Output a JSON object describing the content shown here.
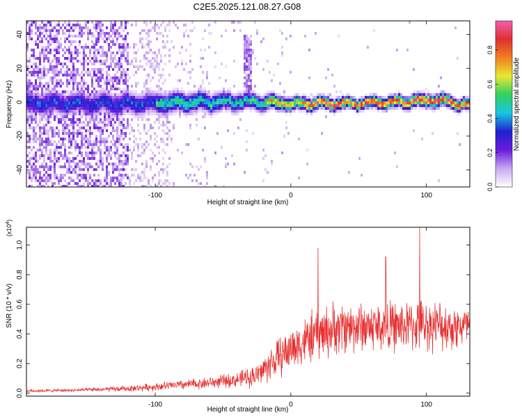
{
  "title": "C2E5.2025.121.08.27.G08",
  "chart_data": [
    {
      "type": "heatmap",
      "xlabel": "Height of straight line (km)",
      "ylabel": "Frequency (Hz)",
      "xlim": [
        -195,
        132
      ],
      "ylim": [
        -50,
        48
      ],
      "xticks": [
        -100,
        0,
        100
      ],
      "yticks": [
        -40,
        -20,
        0,
        20,
        40
      ],
      "colorbar": {
        "label": "Normalized spectral amplitude",
        "range": [
          0,
          0.97
        ],
        "ticks": [
          0.0,
          0.2,
          0.4,
          0.6,
          0.8
        ],
        "tick_labels": [
          "0.0",
          "0.2",
          "0.4",
          "0.6",
          "0.8"
        ],
        "colors": [
          "#ffffff",
          "#c9a8f0",
          "#6a1be0",
          "#2020d0",
          "#18c8e0",
          "#30d060",
          "#e8e830",
          "#f08020",
          "#e03030",
          "#f060b0"
        ]
      },
      "ridge": {
        "description_values": [
          {
            "x": -120,
            "center_hz": 0,
            "halfwidth_hz": 5
          },
          {
            "x": -40,
            "center_hz": 1,
            "halfwidth_hz": 4
          },
          {
            "x": 0,
            "center_hz": 0,
            "halfwidth_hz": 3
          },
          {
            "x": 50,
            "center_hz": 0,
            "halfwidth_hz": 2.5
          },
          {
            "x": 105,
            "center_hz": 2,
            "halfwidth_hz": 3
          },
          {
            "x": 130,
            "center_hz": -1,
            "halfwidth_hz": 2.5
          }
        ],
        "spike": {
          "x": -33,
          "top_hz": 40
        }
      }
    },
    {
      "type": "line",
      "xlabel": "Height of straight line (km)",
      "ylabel": "SNR (10 * v/v)",
      "y_multiplier": "(x10",
      "y_multiplier_exp": "4",
      "y_multiplier_close": ")",
      "xlim": [
        -195,
        132
      ],
      "ylim": [
        -0.02,
        1.12
      ],
      "xticks": [
        -100,
        0,
        100
      ],
      "yticks": [
        0.0,
        0.2,
        0.4,
        0.6,
        0.8,
        1.0
      ],
      "ytick_labels": [
        "0.0",
        "0.2",
        "0.4",
        "0.6",
        "0.8",
        "1.0"
      ],
      "color": "#e83030",
      "envelope": {
        "x": [
          -195,
          -160,
          -120,
          -90,
          -60,
          -40,
          -25,
          -15,
          0,
          20,
          40,
          60,
          80,
          100,
          120,
          132
        ],
        "mean": [
          0.015,
          0.02,
          0.03,
          0.05,
          0.07,
          0.09,
          0.12,
          0.2,
          0.3,
          0.4,
          0.45,
          0.45,
          0.45,
          0.46,
          0.45,
          0.45
        ],
        "spread": [
          0.01,
          0.01,
          0.02,
          0.03,
          0.04,
          0.05,
          0.08,
          0.12,
          0.15,
          0.18,
          0.18,
          0.17,
          0.17,
          0.17,
          0.16,
          0.15
        ]
      },
      "peaks": [
        {
          "x": 20,
          "y": 0.98
        },
        {
          "x": 95,
          "y": 1.12
        },
        {
          "x": 70,
          "y": 0.92
        }
      ]
    }
  ]
}
